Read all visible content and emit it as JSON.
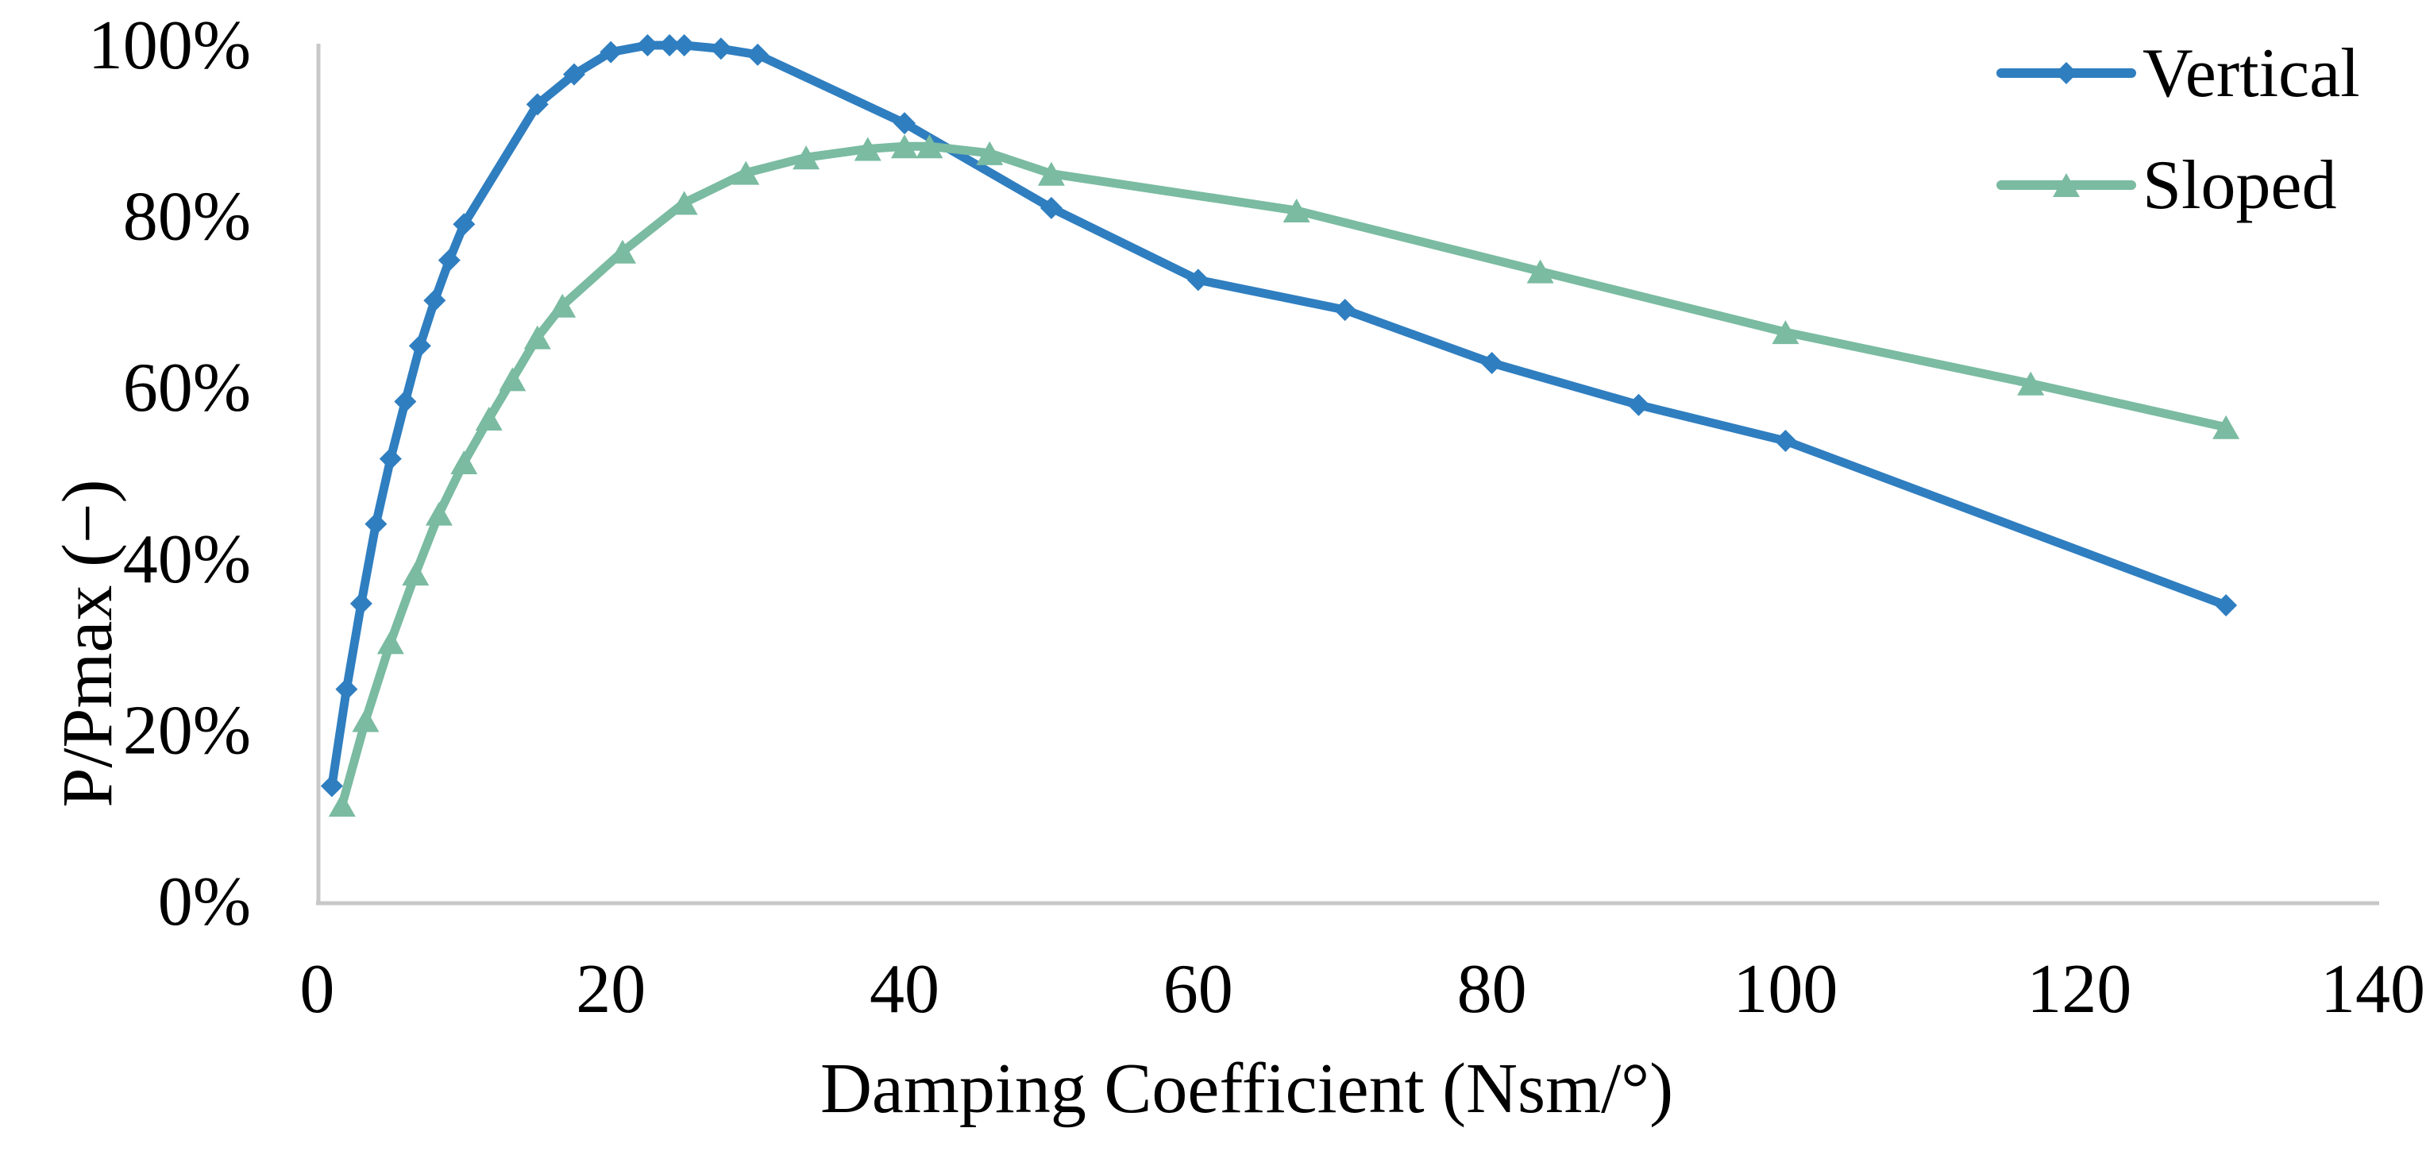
{
  "figure": {
    "background": "#ffffff",
    "axis_color": "#c8c8c8",
    "text_color": "#000000"
  },
  "chart_data": {
    "type": "line",
    "xlabel": "Damping Coefficient (Nsm/°)",
    "ylabel": "P/Pmax (−)",
    "xlim": [
      0,
      140
    ],
    "ylim": [
      0,
      100
    ],
    "grid": false,
    "legend_position": "top-right",
    "x_ticks": [
      0,
      20,
      40,
      60,
      80,
      100,
      120,
      140
    ],
    "x_tick_labels": [
      "0",
      "20",
      "40",
      "60",
      "80",
      "100",
      "120",
      "140"
    ],
    "y_ticks": [
      0,
      20,
      40,
      60,
      80,
      100
    ],
    "y_tick_labels": [
      "0%",
      "20%",
      "40%",
      "60%",
      "80%",
      "100%"
    ],
    "series": [
      {
        "name": "Vertical",
        "color": "#2f7ec0",
        "marker": "diamond",
        "x": [
          1,
          2,
          3,
          4,
          5,
          6,
          7,
          8,
          9,
          10,
          15,
          17.5,
          20,
          22.5,
          24,
          25,
          27.5,
          30,
          40,
          50,
          60,
          70,
          80,
          90,
          100,
          130
        ],
        "y": [
          13.5,
          24.8,
          34.8,
          44.1,
          51.7,
          58.4,
          64.9,
          70.2,
          74.9,
          79.1,
          93.1,
          96.6,
          99.2,
          100,
          100,
          100,
          99.6,
          98.9,
          90.9,
          81.0,
          72.6,
          69.1,
          62.9,
          58.0,
          53.8,
          34.6
        ]
      },
      {
        "name": "Sloped",
        "color": "#7abba1",
        "marker": "triangle",
        "x": [
          1.7,
          3.3,
          5,
          6.7,
          8.3,
          10,
          11.7,
          13.3,
          15,
          16.7,
          20.8,
          25,
          29.2,
          33.3,
          37.5,
          40,
          41.7,
          45.8,
          50,
          66.7,
          83.3,
          100,
          116.7,
          130
        ],
        "y": [
          11.3,
          21.2,
          30.3,
          38.3,
          45.3,
          51.3,
          56.4,
          61.0,
          65.9,
          69.6,
          75.9,
          81.6,
          85.1,
          86.9,
          87.9,
          88.2,
          88.2,
          87.4,
          85.0,
          80.7,
          73.6,
          66.5,
          60.5,
          55.4
        ]
      }
    ]
  },
  "legend": {
    "items": [
      {
        "label": "Vertical"
      },
      {
        "label": "Sloped"
      }
    ]
  }
}
